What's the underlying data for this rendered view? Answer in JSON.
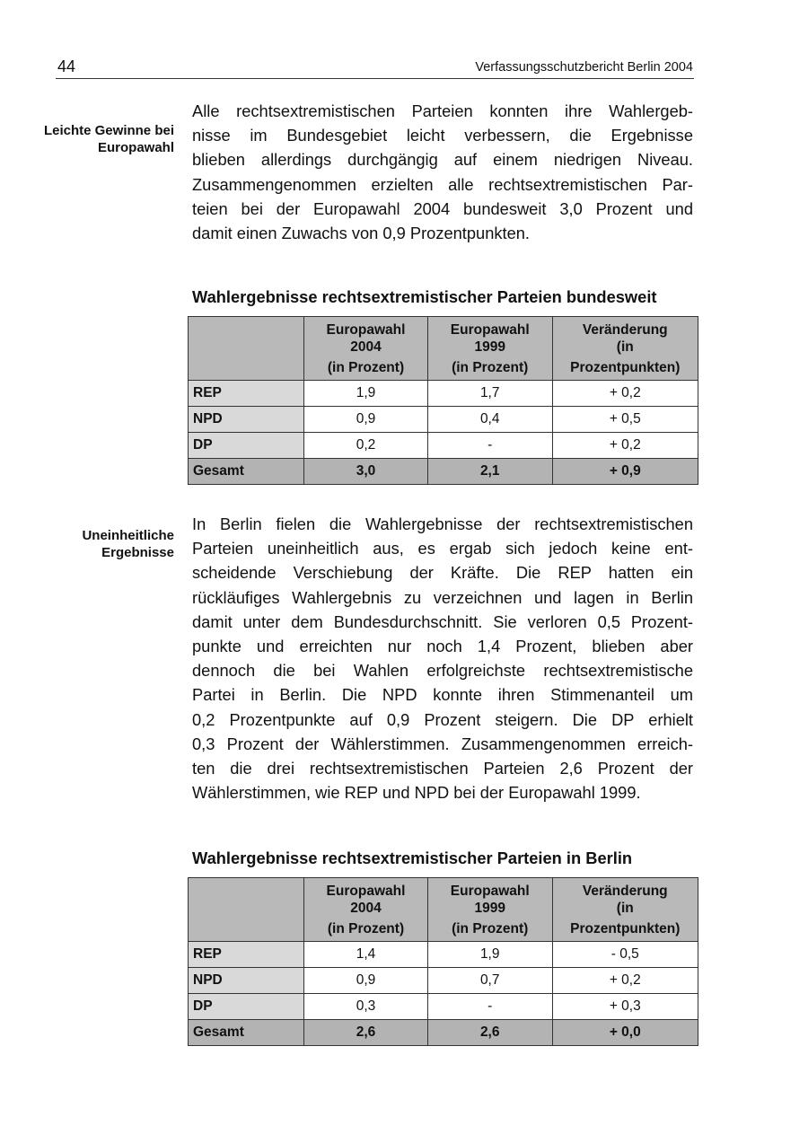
{
  "header": {
    "page_number": "44",
    "title": "Verfassungsschutzbericht Berlin 2004"
  },
  "section1": {
    "side_label": [
      "Leichte Gewinne bei",
      "Europawahl"
    ],
    "lines": [
      "Alle rechtsextremistischen Parteien konnten ihre Wahlergeb-",
      "nisse im Bundesgebiet leicht verbessern, die Ergebnisse",
      "blieben allerdings durchgängig auf einem niedrigen Niveau.",
      "Zusammengenommen erzielten alle rechtsextremistischen Par-",
      "teien bei der Europawahl 2004 bundesweit 3,0 Prozent und",
      "damit einen Zuwachs von 0,9 Prozentpunkten."
    ]
  },
  "table1": {
    "title": "Wahlergebnisse rechtsextremistischer Parteien bundesweit",
    "headers": [
      [
        "Europawahl",
        "2004",
        "(in Prozent)"
      ],
      [
        "Europawahl",
        "1999",
        "(in Prozent)"
      ],
      [
        "Veränderung",
        "(in",
        "Prozentpunkten)"
      ]
    ],
    "rows": [
      [
        "REP",
        "1,9",
        "1,7",
        "+ 0,2"
      ],
      [
        "NPD",
        "0,9",
        "0,4",
        "+ 0,5"
      ],
      [
        "DP",
        "0,2",
        "-",
        "+ 0,2"
      ]
    ],
    "total": [
      "Gesamt",
      "3,0",
      "2,1",
      "+ 0,9"
    ]
  },
  "section2": {
    "side_label": [
      "Uneinheitliche",
      "Ergebnisse"
    ],
    "lines": [
      "In Berlin fielen die Wahlergebnisse der rechtsextremistischen",
      "Parteien uneinheitlich aus, es ergab sich jedoch keine ent-",
      "scheidende Verschiebung der Kräfte. Die REP hatten ein",
      "rückläufiges Wahlergebnis zu verzeichnen und lagen in Berlin",
      "damit unter dem Bundesdurchschnitt. Sie verloren 0,5 Prozent-",
      "punkte und erreichten nur noch 1,4 Prozent, blieben aber",
      "dennoch die bei Wahlen erfolgreichste rechtsextremistische",
      "Partei in Berlin. Die NPD konnte ihren Stimmenanteil um",
      "0,2 Prozentpunkte auf 0,9 Prozent steigern. Die DP erhielt",
      "0,3 Prozent der Wählerstimmen. Zusammengenommen erreich-",
      "ten die drei rechtsextremistischen Parteien 2,6 Prozent der",
      "Wählerstimmen, wie REP und NPD bei der Europawahl 1999."
    ]
  },
  "table2": {
    "title": "Wahlergebnisse rechtsextremistischer Parteien in Berlin",
    "headers": [
      [
        "Europawahl",
        "2004",
        "(in Prozent)"
      ],
      [
        "Europawahl",
        "1999",
        "(in Prozent)"
      ],
      [
        "Veränderung",
        "(in",
        "Prozentpunkten)"
      ]
    ],
    "rows": [
      [
        "REP",
        "1,4",
        "1,9",
        "- 0,5"
      ],
      [
        "NPD",
        "0,9",
        "0,7",
        "+ 0,2"
      ],
      [
        "DP",
        "0,3",
        "-",
        "+ 0,3"
      ]
    ],
    "total": [
      "Gesamt",
      "2,6",
      "2,6",
      "+ 0,0"
    ]
  },
  "colors": {
    "header_cell": "#b9b9b9",
    "label_cell": "#d9d9d9",
    "total_row": "#b3b3b3"
  }
}
